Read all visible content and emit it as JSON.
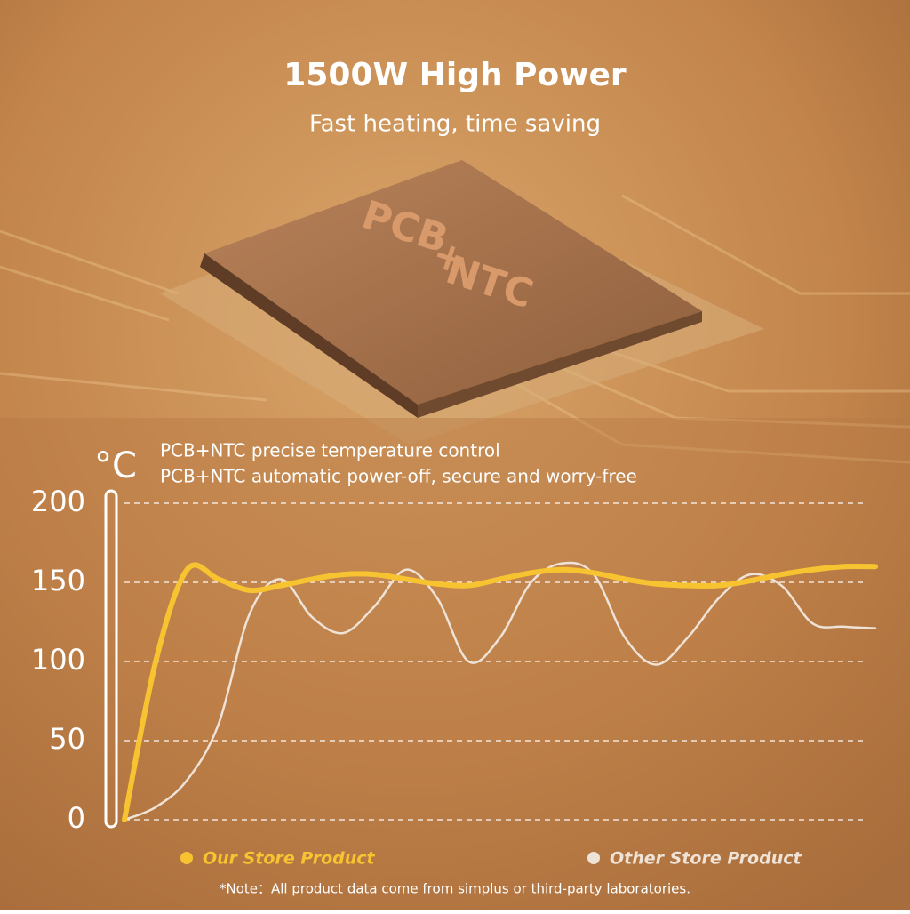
{
  "chip": {
    "lines": [
      "PCB",
      "+",
      "NTC"
    ]
  },
  "chart_data": {
    "type": "line",
    "title": "1500W High Power",
    "subtitle": "Fast heating, time saving",
    "y_label": "°C",
    "notes": [
      "PCB+NTC precise  temperature control",
      "PCB+NTC automatic power-off, secure and worry-free"
    ],
    "footnote": "*Note：All product data come from simplus or  third-party laboratories.",
    "categories": [
      null,
      null,
      null,
      null,
      null,
      null,
      null,
      null,
      null,
      null,
      null,
      null,
      null,
      null,
      null,
      null,
      null,
      null,
      null,
      null,
      null,
      null,
      null,
      null,
      null
    ],
    "series": [
      {
        "name": "Our Store Product",
        "color": "#f7c331",
        "values": [
          0,
          100,
          158,
          152,
          145,
          148,
          152,
          155,
          155,
          152,
          149,
          148,
          152,
          156,
          158,
          156,
          152,
          149,
          148,
          148,
          151,
          155,
          158,
          160,
          160
        ]
      },
      {
        "name": "Other Store Product",
        "color": "#efe2d6",
        "values": [
          0,
          8,
          25,
          60,
          130,
          152,
          128,
          118,
          135,
          158,
          140,
          100,
          115,
          150,
          162,
          155,
          115,
          98,
          115,
          140,
          155,
          148,
          124,
          122,
          121
        ]
      }
    ],
    "ylim": [
      0,
      200
    ],
    "yticks": [
      0,
      50,
      100,
      150,
      200
    ],
    "grid": true
  }
}
